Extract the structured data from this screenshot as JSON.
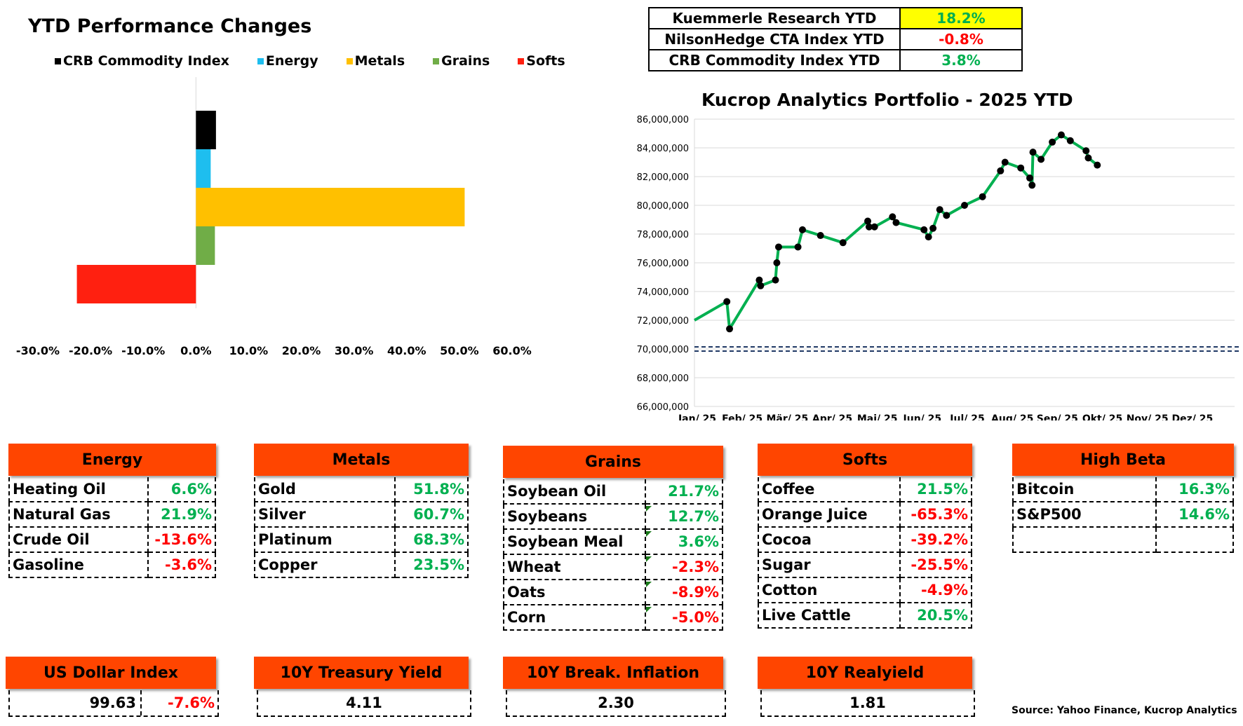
{
  "perf_title": "YTD Performance Changes",
  "legend": [
    {
      "label": "CRB Commodity Index",
      "color": "#000000"
    },
    {
      "label": "Energy",
      "color": "#1ebeef"
    },
    {
      "label": "Metals",
      "color": "#ffc000"
    },
    {
      "label": "Grains",
      "color": "#70ad47"
    },
    {
      "label": "Softs",
      "color": "#ff2010"
    }
  ],
  "ytd_table": [
    {
      "label": "Kuemmerle Research YTD",
      "value": "18.2%",
      "tone": "pos",
      "highlight": "#ffff00"
    },
    {
      "label": "NilsonHedge CTA Index YTD",
      "value": "-0.8%",
      "tone": "neg",
      "highlight": ""
    },
    {
      "label": "CRB Commodity Index YTD",
      "value": "3.8%",
      "tone": "pos",
      "highlight": ""
    }
  ],
  "line_title": "Kucrop Analytics Portfolio - 2025 YTD",
  "chart_data": [
    {
      "type": "bar",
      "orientation": "horizontal",
      "title": "YTD Performance Changes",
      "categories": [
        "CRB Commodity Index",
        "Energy",
        "Metals",
        "Grains",
        "Softs"
      ],
      "values": [
        3.8,
        2.8,
        51.0,
        3.6,
        -22.6
      ],
      "colors": [
        "#000000",
        "#1ebeef",
        "#ffc000",
        "#70ad47",
        "#ff2010"
      ],
      "xlim": [
        -30,
        60
      ],
      "xticks": [
        "-30.0%",
        "-20.0%",
        "-10.0%",
        "0.0%",
        "10.0%",
        "20.0%",
        "30.0%",
        "40.0%",
        "50.0%",
        "60.0%"
      ],
      "grid": false,
      "legend": "top"
    },
    {
      "type": "line",
      "title": "Kucrop Analytics Portfolio - 2025 YTD",
      "ylim": [
        66000000,
        86000000
      ],
      "yticks": [
        "66,000,000",
        "68,000,000",
        "70,000,000",
        "72,000,000",
        "74,000,000",
        "76,000,000",
        "78,000,000",
        "80,000,000",
        "82,000,000",
        "84,000,000",
        "86,000,000"
      ],
      "xticks": [
        "Jan/ 25",
        "Feb/ 25",
        "Mär/ 25",
        "Apr/ 25",
        "Mai/ 25",
        "Jun/ 25",
        "Jul/ 25",
        "Aug/ 25",
        "Sep/ 25",
        "Okt/ 25",
        "Nov/ 25",
        "Dez/ 25"
      ],
      "grid": "horizontal",
      "line_color": "#00b050",
      "baseline": 70000000,
      "series": [
        {
          "x": [
            0,
            0.72,
            0.78,
            1.44,
            1.47,
            1.8,
            1.83,
            1.87,
            2.3,
            2.4,
            2.8,
            3.3,
            3.85,
            3.88,
            4.0,
            4.4,
            4.48,
            5.1,
            5.2,
            5.3,
            5.45,
            5.6,
            6.0,
            6.4,
            6.8,
            6.9,
            7.25,
            7.45,
            7.5,
            7.52,
            7.7,
            7.95,
            8.15,
            8.35,
            8.7,
            8.75,
            8.95
          ],
          "y": [
            72000000,
            73300000,
            71400000,
            74800000,
            74400000,
            74800000,
            76000000,
            77100000,
            77100000,
            78300000,
            77900000,
            77400000,
            78900000,
            78500000,
            78500000,
            79200000,
            78800000,
            78300000,
            77800000,
            78400000,
            79700000,
            79300000,
            80000000,
            80600000,
            82400000,
            83000000,
            82600000,
            81900000,
            81400000,
            83700000,
            83200000,
            84400000,
            84900000,
            84500000,
            83800000,
            83300000,
            82800000
          ],
          "markers_from_index": 1
        }
      ]
    }
  ],
  "categories": [
    {
      "key": "energy",
      "title": "Energy",
      "rows": [
        {
          "name": "Heating Oil",
          "value": "6.6%",
          "tone": "pos"
        },
        {
          "name": "Natural Gas",
          "value": "21.9%",
          "tone": "pos"
        },
        {
          "name": "Crude Oil",
          "value": "-13.6%",
          "tone": "neg"
        },
        {
          "name": "Gasoline",
          "value": "-3.6%",
          "tone": "neg"
        }
      ]
    },
    {
      "key": "metals",
      "title": "Metals",
      "rows": [
        {
          "name": "Gold",
          "value": "51.8%",
          "tone": "pos"
        },
        {
          "name": "Silver",
          "value": "60.7%",
          "tone": "pos"
        },
        {
          "name": "Platinum",
          "value": "68.3%",
          "tone": "pos"
        },
        {
          "name": "Copper",
          "value": "23.5%",
          "tone": "pos"
        }
      ]
    },
    {
      "key": "grains",
      "title": "Grains",
      "rows": [
        {
          "name": "Soybean Oil",
          "value": "21.7%",
          "tone": "pos"
        },
        {
          "name": "Soybeans",
          "value": "12.7%",
          "tone": "pos"
        },
        {
          "name": "Soybean Meal",
          "value": "3.6%",
          "tone": "pos"
        },
        {
          "name": "Wheat",
          "value": "-2.3%",
          "tone": "neg"
        },
        {
          "name": "Oats",
          "value": "-8.9%",
          "tone": "neg"
        },
        {
          "name": "Corn",
          "value": "-5.0%",
          "tone": "neg"
        }
      ]
    },
    {
      "key": "softs",
      "title": "Softs",
      "rows": [
        {
          "name": "Coffee",
          "value": "21.5%",
          "tone": "pos"
        },
        {
          "name": "Orange Juice",
          "value": "-65.3%",
          "tone": "neg"
        },
        {
          "name": "Cocoa",
          "value": "-39.2%",
          "tone": "neg"
        },
        {
          "name": "Sugar",
          "value": "-25.5%",
          "tone": "neg"
        },
        {
          "name": "Cotton",
          "value": "-4.9%",
          "tone": "neg"
        },
        {
          "name": "Live Cattle",
          "value": "20.5%",
          "tone": "pos"
        }
      ]
    },
    {
      "key": "high-beta",
      "title": "High Beta",
      "rows": [
        {
          "name": "Bitcoin",
          "value": "16.3%",
          "tone": "pos"
        },
        {
          "name": "S&P500",
          "value": "14.6%",
          "tone": "pos"
        },
        {
          "name": "",
          "value": "",
          "tone": ""
        }
      ]
    }
  ],
  "macro": [
    {
      "key": "us-dollar-index",
      "title": "US Dollar Index",
      "value": "99.63",
      "change": "-7.6%",
      "tone": "neg"
    },
    {
      "key": "10y-treasury-yield",
      "title": "10Y Treasury Yield",
      "value": "4.11",
      "change": "",
      "tone": ""
    },
    {
      "key": "10y-breakeven-inflation",
      "title": "10Y Break. Inflation",
      "value": "2.30",
      "change": "",
      "tone": ""
    },
    {
      "key": "10y-realyield",
      "title": "10Y Realyield",
      "value": "1.81",
      "change": "",
      "tone": ""
    }
  ],
  "source": "Source: Yahoo Finance, Kucrop Analytics"
}
